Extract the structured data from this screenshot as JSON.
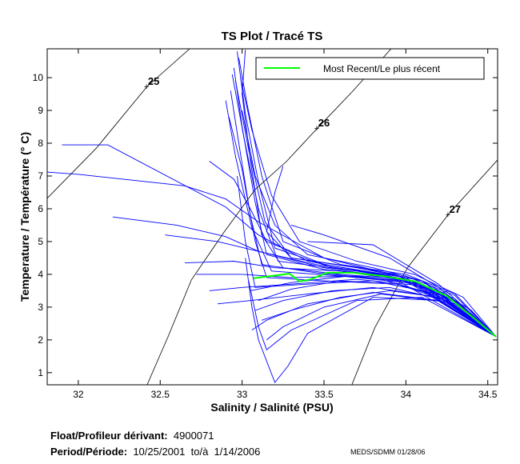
{
  "chart_data": {
    "type": "line",
    "title": "TS Plot / Tracé TS",
    "xlabel": "Salinity / Salinité (PSU)",
    "ylabel": "Temperature / Température (° C)",
    "xlim": [
      31.81,
      34.56
    ],
    "ylim": [
      0.63,
      10.88
    ],
    "xticks": [
      "32",
      "32.5",
      "33",
      "33.5",
      "34",
      "34.5"
    ],
    "xtick_values": [
      32,
      32.5,
      33,
      33.5,
      34,
      34.5
    ],
    "yticks": [
      "1",
      "2",
      "3",
      "4",
      "5",
      "6",
      "7",
      "8",
      "9",
      "10"
    ],
    "ytick_values": [
      1,
      2,
      3,
      4,
      5,
      6,
      7,
      8,
      9,
      10
    ],
    "grid": false,
    "legend": {
      "position": "top-right",
      "entries": [
        "Most Recent/Le plus récent"
      ]
    },
    "colors": {
      "profiles": "#0000ff",
      "most_recent": "#00ff00",
      "contours": "#000000"
    },
    "density_contours": [
      {
        "label": "25",
        "label_at": [
          32.42,
          9.73
        ],
        "points": [
          [
            31.81,
            6.32
          ],
          [
            32.11,
            7.85
          ],
          [
            32.42,
            9.73
          ],
          [
            32.68,
            10.88
          ]
        ]
      },
      {
        "label": "26",
        "label_at": [
          33.46,
          8.46
        ],
        "points": [
          [
            32.42,
            0.63
          ],
          [
            32.55,
            2.12
          ],
          [
            32.69,
            3.83
          ],
          [
            32.89,
            5.29
          ],
          [
            33.08,
            6.59
          ],
          [
            33.27,
            7.44
          ],
          [
            33.46,
            8.46
          ],
          [
            33.67,
            9.56
          ],
          [
            33.91,
            10.88
          ]
        ]
      },
      {
        "label": "27",
        "label_at": [
          34.26,
          5.83
        ],
        "points": [
          [
            33.67,
            0.63
          ],
          [
            33.81,
            2.37
          ],
          [
            34.01,
            4.2
          ],
          [
            34.26,
            5.83
          ],
          [
            34.56,
            7.49
          ]
        ]
      }
    ],
    "most_recent": [
      [
        33.07,
        3.88
      ],
      [
        33.29,
        4.02
      ],
      [
        33.35,
        3.78
      ],
      [
        33.42,
        3.85
      ],
      [
        33.52,
        4.05
      ],
      [
        33.67,
        4.05
      ],
      [
        33.86,
        3.95
      ],
      [
        34.06,
        3.78
      ],
      [
        34.25,
        3.34
      ],
      [
        34.4,
        2.73
      ],
      [
        34.55,
        2.1
      ]
    ],
    "profiles": [
      [
        [
          32.95,
          10.3
        ],
        [
          33.0,
          8.5
        ],
        [
          33.08,
          6.2
        ],
        [
          33.15,
          4.6
        ],
        [
          33.5,
          4.15
        ],
        [
          33.9,
          3.95
        ],
        [
          34.2,
          3.45
        ],
        [
          34.4,
          2.8
        ],
        [
          34.55,
          2.1
        ]
      ],
      [
        [
          32.97,
          10.8
        ],
        [
          33.02,
          8.9
        ],
        [
          33.1,
          6.8
        ],
        [
          33.2,
          4.8
        ],
        [
          33.55,
          4.2
        ],
        [
          33.95,
          3.95
        ],
        [
          34.25,
          3.4
        ],
        [
          34.55,
          2.1
        ]
      ],
      [
        [
          32.93,
          9.6
        ],
        [
          32.98,
          8.0
        ],
        [
          33.05,
          5.8
        ],
        [
          33.12,
          4.3
        ],
        [
          33.45,
          4.05
        ],
        [
          33.85,
          3.85
        ],
        [
          34.2,
          3.35
        ],
        [
          34.55,
          2.1
        ]
      ],
      [
        [
          32.9,
          9.3
        ],
        [
          32.96,
          7.6
        ],
        [
          33.06,
          5.4
        ],
        [
          33.18,
          4.1
        ],
        [
          33.6,
          3.95
        ],
        [
          34.0,
          3.75
        ],
        [
          34.3,
          3.2
        ],
        [
          34.55,
          2.1
        ]
      ],
      [
        [
          32.98,
          10.6
        ],
        [
          33.03,
          9.2
        ],
        [
          33.12,
          7.0
        ],
        [
          33.25,
          5.0
        ],
        [
          33.6,
          4.3
        ],
        [
          34.0,
          4.0
        ],
        [
          34.3,
          3.4
        ],
        [
          34.55,
          2.1
        ]
      ],
      [
        [
          32.94,
          10.1
        ],
        [
          33.01,
          8.2
        ],
        [
          33.1,
          6.0
        ],
        [
          33.22,
          4.4
        ],
        [
          33.7,
          4.1
        ],
        [
          34.05,
          3.8
        ],
        [
          34.35,
          3.0
        ],
        [
          34.55,
          2.1
        ]
      ],
      [
        [
          32.96,
          9.9
        ],
        [
          33.04,
          7.8
        ],
        [
          33.14,
          5.6
        ],
        [
          33.3,
          4.5
        ],
        [
          33.65,
          4.25
        ],
        [
          34.0,
          3.95
        ],
        [
          34.3,
          3.35
        ],
        [
          34.55,
          2.1
        ]
      ],
      [
        [
          32.92,
          8.8
        ],
        [
          33.0,
          7.2
        ],
        [
          33.08,
          5.0
        ],
        [
          33.15,
          3.9
        ],
        [
          33.5,
          3.8
        ],
        [
          33.95,
          3.7
        ],
        [
          34.3,
          3.1
        ],
        [
          34.55,
          2.1
        ]
      ],
      [
        [
          32.99,
          10.0
        ],
        [
          33.06,
          8.4
        ],
        [
          33.18,
          6.4
        ],
        [
          33.35,
          5.0
        ],
        [
          33.7,
          4.4
        ],
        [
          34.05,
          4.0
        ],
        [
          34.35,
          3.3
        ],
        [
          34.55,
          2.1
        ]
      ],
      [
        [
          33.0,
          9.0
        ],
        [
          33.08,
          7.0
        ],
        [
          33.2,
          5.5
        ],
        [
          33.4,
          4.6
        ],
        [
          33.8,
          4.2
        ],
        [
          34.1,
          3.8
        ],
        [
          34.4,
          2.9
        ],
        [
          34.55,
          2.1
        ]
      ],
      [
        [
          33.1,
          3.2
        ],
        [
          33.3,
          3.55
        ],
        [
          33.6,
          3.8
        ],
        [
          33.95,
          3.7
        ],
        [
          34.25,
          3.25
        ],
        [
          34.55,
          2.1
        ]
      ],
      [
        [
          33.08,
          2.9
        ],
        [
          33.25,
          3.2
        ],
        [
          33.55,
          3.5
        ],
        [
          33.9,
          3.6
        ],
        [
          34.25,
          3.2
        ],
        [
          34.55,
          2.1
        ]
      ],
      [
        [
          33.05,
          3.5
        ],
        [
          33.3,
          3.75
        ],
        [
          33.65,
          3.95
        ],
        [
          34.0,
          3.8
        ],
        [
          34.3,
          3.2
        ],
        [
          34.55,
          2.1
        ]
      ],
      [
        [
          33.12,
          2.6
        ],
        [
          33.3,
          2.9
        ],
        [
          33.6,
          3.3
        ],
        [
          33.9,
          3.5
        ],
        [
          34.2,
          3.3
        ],
        [
          34.55,
          2.1
        ]
      ],
      [
        [
          33.06,
          2.3
        ],
        [
          33.15,
          2.6
        ],
        [
          33.4,
          3.1
        ],
        [
          33.8,
          3.45
        ],
        [
          34.2,
          3.2
        ],
        [
          34.55,
          2.1
        ]
      ],
      [
        [
          33.02,
          4.5
        ],
        [
          33.06,
          3.0
        ],
        [
          33.1,
          2.0
        ],
        [
          33.2,
          0.7
        ],
        [
          33.28,
          1.2
        ],
        [
          33.4,
          2.2
        ],
        [
          33.8,
          3.3
        ],
        [
          34.2,
          3.2
        ],
        [
          34.55,
          2.1
        ]
      ],
      [
        [
          33.04,
          3.8
        ],
        [
          33.1,
          2.4
        ],
        [
          33.15,
          1.7
        ],
        [
          33.3,
          2.3
        ],
        [
          33.7,
          3.2
        ],
        [
          34.1,
          3.3
        ],
        [
          34.55,
          2.1
        ]
      ],
      [
        [
          31.9,
          7.95
        ],
        [
          32.18,
          7.95
        ],
        [
          32.9,
          6.05
        ],
        [
          33.1,
          5.2
        ],
        [
          33.4,
          4.4
        ],
        [
          34.0,
          3.85
        ],
        [
          34.55,
          2.1
        ]
      ],
      [
        [
          31.81,
          7.12
        ],
        [
          32.0,
          7.05
        ],
        [
          32.65,
          6.7
        ],
        [
          32.9,
          6.3
        ],
        [
          33.1,
          5.6
        ],
        [
          33.5,
          4.5
        ],
        [
          34.0,
          3.9
        ],
        [
          34.55,
          2.1
        ]
      ],
      [
        [
          32.21,
          5.75
        ],
        [
          32.6,
          5.5
        ],
        [
          32.9,
          5.15
        ],
        [
          33.1,
          4.7
        ],
        [
          33.5,
          4.2
        ],
        [
          34.0,
          3.85
        ],
        [
          34.55,
          2.1
        ]
      ],
      [
        [
          32.53,
          5.2
        ],
        [
          32.85,
          5.0
        ],
        [
          33.1,
          4.7
        ],
        [
          33.45,
          4.3
        ],
        [
          33.9,
          3.95
        ],
        [
          34.55,
          2.1
        ]
      ],
      [
        [
          32.65,
          4.35
        ],
        [
          32.95,
          4.4
        ],
        [
          33.2,
          4.2
        ],
        [
          33.6,
          4.1
        ],
        [
          34.0,
          3.8
        ],
        [
          34.55,
          2.1
        ]
      ],
      [
        [
          32.72,
          4.0
        ],
        [
          33.0,
          4.0
        ],
        [
          33.3,
          3.9
        ],
        [
          33.7,
          3.95
        ],
        [
          34.1,
          3.7
        ],
        [
          34.55,
          2.1
        ]
      ],
      [
        [
          32.8,
          3.5
        ],
        [
          33.0,
          3.6
        ],
        [
          33.3,
          3.7
        ],
        [
          33.7,
          3.85
        ],
        [
          34.1,
          3.65
        ],
        [
          34.55,
          2.1
        ]
      ],
      [
        [
          32.85,
          3.1
        ],
        [
          33.05,
          3.2
        ],
        [
          33.4,
          3.4
        ],
        [
          33.8,
          3.6
        ],
        [
          34.2,
          3.3
        ],
        [
          34.55,
          2.1
        ]
      ],
      [
        [
          32.8,
          7.45
        ],
        [
          32.95,
          6.9
        ],
        [
          33.05,
          6.0
        ],
        [
          33.15,
          5.0
        ],
        [
          33.5,
          4.3
        ],
        [
          34.0,
          3.9
        ],
        [
          34.55,
          2.1
        ]
      ],
      [
        [
          33.25,
          7.3
        ],
        [
          33.2,
          6.5
        ],
        [
          33.15,
          5.3
        ],
        [
          33.3,
          4.5
        ],
        [
          33.7,
          4.2
        ],
        [
          34.1,
          3.8
        ],
        [
          34.55,
          2.1
        ]
      ],
      [
        [
          33.4,
          5.0
        ],
        [
          33.8,
          4.9
        ],
        [
          34.0,
          4.3
        ],
        [
          34.2,
          3.7
        ],
        [
          34.55,
          2.1
        ]
      ],
      [
        [
          33.3,
          5.5
        ],
        [
          33.5,
          5.2
        ],
        [
          33.9,
          4.5
        ],
        [
          34.2,
          3.6
        ],
        [
          34.55,
          2.1
        ]
      ],
      [
        [
          33.02,
          10.85
        ],
        [
          33.0,
          9.5
        ],
        [
          33.05,
          7.5
        ],
        [
          33.12,
          5.2
        ],
        [
          33.25,
          4.2
        ],
        [
          33.6,
          4.0
        ],
        [
          34.0,
          3.85
        ],
        [
          34.3,
          3.25
        ],
        [
          34.55,
          2.1
        ]
      ],
      [
        [
          32.97,
          7.0
        ],
        [
          33.02,
          5.0
        ],
        [
          33.08,
          3.6
        ],
        [
          33.4,
          3.7
        ],
        [
          33.8,
          3.8
        ],
        [
          34.2,
          3.4
        ],
        [
          34.55,
          2.1
        ]
      ],
      [
        [
          33.15,
          2.0
        ],
        [
          33.25,
          2.4
        ],
        [
          33.5,
          3.0
        ],
        [
          33.85,
          3.4
        ],
        [
          34.25,
          3.15
        ],
        [
          34.55,
          2.1
        ]
      ]
    ]
  },
  "footer": {
    "float_label": "Float/Profileur dérivant:",
    "float_id": "4900071",
    "period_label": "Period/Période:",
    "period_start": "10/25/2001",
    "period_to": "to/à",
    "period_end": "1/14/2006",
    "credit": "MEDS/SDMM  01/28/06"
  }
}
